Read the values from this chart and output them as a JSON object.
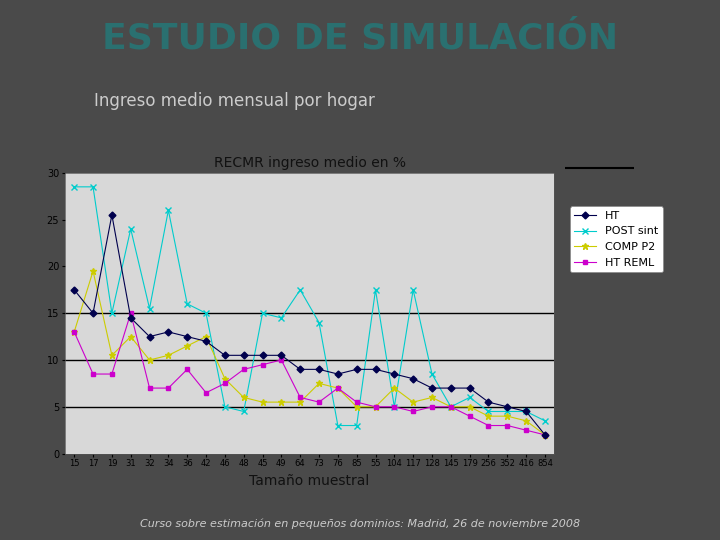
{
  "title": "ESTUDIO DE SIMULACIÓN",
  "subtitle": "Ingreso medio mensual por hogar",
  "chart_title": "RECMR ingreso medio en %",
  "xlabel": "Tamaño muestral",
  "footer": "Curso sobre estimación en pequeños dominios: Madrid, 26 de noviembre 2008",
  "x_labels": [
    "15",
    "17",
    "19",
    "31",
    "32",
    "34",
    "36",
    "42",
    "46",
    "48",
    "45",
    "49",
    "64",
    "73",
    "76",
    "85",
    "55",
    "104",
    "117",
    "128",
    "145",
    "179",
    "256",
    "352",
    "416",
    "854"
  ],
  "HT": [
    17.5,
    15.0,
    25.5,
    14.5,
    12.5,
    13.0,
    12.5,
    12.0,
    10.5,
    10.5,
    10.5,
    10.5,
    9.0,
    9.0,
    8.5,
    9.0,
    9.0,
    8.5,
    8.0,
    7.0,
    7.0,
    7.0,
    5.5,
    5.0,
    4.5,
    2.0
  ],
  "POST_sint": [
    28.5,
    28.5,
    15.0,
    24.0,
    15.5,
    26.0,
    16.0,
    15.0,
    5.0,
    4.5,
    15.0,
    14.5,
    17.5,
    14.0,
    3.0,
    3.0,
    17.5,
    5.0,
    17.5,
    8.5,
    5.0,
    6.0,
    4.5,
    4.5,
    4.5,
    3.5
  ],
  "COMP_P2": [
    13.0,
    19.5,
    10.5,
    12.5,
    10.0,
    10.5,
    11.5,
    12.5,
    8.0,
    6.0,
    5.5,
    5.5,
    5.5,
    7.5,
    7.0,
    5.0,
    5.0,
    7.0,
    5.5,
    6.0,
    5.0,
    5.0,
    4.0,
    4.0,
    3.5,
    2.0
  ],
  "HT_REML": [
    13.0,
    8.5,
    8.5,
    15.0,
    7.0,
    7.0,
    9.0,
    6.5,
    7.5,
    9.0,
    9.5,
    10.0,
    6.0,
    5.5,
    7.0,
    5.5,
    5.0,
    5.0,
    4.5,
    5.0,
    5.0,
    4.0,
    3.0,
    3.0,
    2.5,
    2.0
  ],
  "color_HT": "#00004d",
  "color_POST": "#00CCCC",
  "color_COMP": "#CCCC00",
  "color_REML": "#CC00CC",
  "hlines": [
    5,
    10,
    15
  ],
  "hline_color": "#000000",
  "ylim": [
    0,
    30
  ],
  "yticks": [
    0,
    5,
    10,
    15,
    20,
    25,
    30
  ],
  "bg_color": "#4a4a4a",
  "chart_bg": "#d8d8d8",
  "title_color": "#2a7070",
  "subtitle_color": "#cccccc",
  "chart_title_color": "#111111",
  "xlabel_color": "#111111",
  "footer_color": "#cccccc",
  "title_fontsize": 26,
  "subtitle_fontsize": 12,
  "chart_title_fontsize": 10,
  "xlabel_fontsize": 10,
  "footer_fontsize": 8,
  "legend_fontsize": 8
}
